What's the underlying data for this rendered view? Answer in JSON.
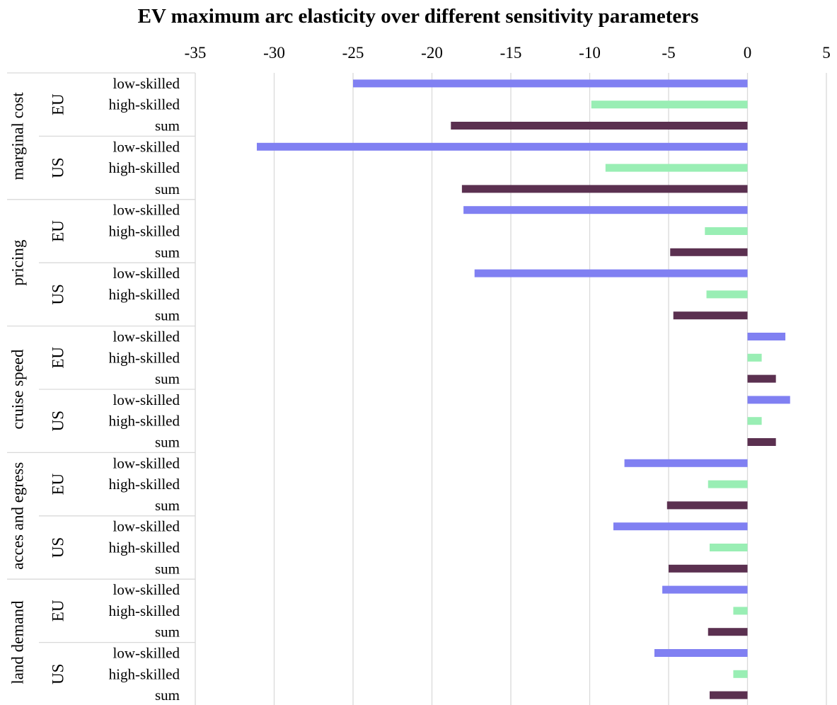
{
  "chart_data": {
    "type": "bar",
    "orientation": "horizontal",
    "title": "EV maximum arc elasticity over different sensitivity parameters",
    "xlim": [
      -35,
      5
    ],
    "x_ticks": [
      "-35",
      "-30",
      "-25",
      "-20",
      "-15",
      "-10",
      "-5",
      "0",
      "5"
    ],
    "grid": true,
    "legend": "none",
    "colors": {
      "low-skilled": "#8080f2",
      "high-skilled": "#99eeb4",
      "sum": "#5b3050"
    },
    "groups": [
      {
        "label": "marginal cost",
        "regions": [
          {
            "label": "EU",
            "rows": [
              {
                "label": "low-skilled",
                "value": -25.0
              },
              {
                "label": "high-skilled",
                "value": -9.9
              },
              {
                "label": "sum",
                "value": -18.8
              }
            ]
          },
          {
            "label": "US",
            "rows": [
              {
                "label": "low-skilled",
                "value": -31.1
              },
              {
                "label": "high-skilled",
                "value": -9.0
              },
              {
                "label": "sum",
                "value": -18.1
              }
            ]
          }
        ]
      },
      {
        "label": "pricing",
        "regions": [
          {
            "label": "EU",
            "rows": [
              {
                "label": "low-skilled",
                "value": -18.0
              },
              {
                "label": "high-skilled",
                "value": -2.7
              },
              {
                "label": "sum",
                "value": -4.9
              }
            ]
          },
          {
            "label": "US",
            "rows": [
              {
                "label": "low-skilled",
                "value": -17.3
              },
              {
                "label": "high-skilled",
                "value": -2.6
              },
              {
                "label": "sum",
                "value": -4.7
              }
            ]
          }
        ]
      },
      {
        "label": "cruise speed",
        "regions": [
          {
            "label": "EU",
            "rows": [
              {
                "label": "low-skilled",
                "value": 2.4
              },
              {
                "label": "high-skilled",
                "value": 0.9
              },
              {
                "label": "sum",
                "value": 1.8
              }
            ]
          },
          {
            "label": "US",
            "rows": [
              {
                "label": "low-skilled",
                "value": 2.7
              },
              {
                "label": "high-skilled",
                "value": 0.9
              },
              {
                "label": "sum",
                "value": 1.8
              }
            ]
          }
        ]
      },
      {
        "label": "acces and egress",
        "regions": [
          {
            "label": "EU",
            "rows": [
              {
                "label": "low-skilled",
                "value": -7.8
              },
              {
                "label": "high-skilled",
                "value": -2.5
              },
              {
                "label": "sum",
                "value": -5.1
              }
            ]
          },
          {
            "label": "US",
            "rows": [
              {
                "label": "low-skilled",
                "value": -8.5
              },
              {
                "label": "high-skilled",
                "value": -2.4
              },
              {
                "label": "sum",
                "value": -5.0
              }
            ]
          }
        ]
      },
      {
        "label": "land demand",
        "regions": [
          {
            "label": "EU",
            "rows": [
              {
                "label": "low-skilled",
                "value": -5.4
              },
              {
                "label": "high-skilled",
                "value": -0.9
              },
              {
                "label": "sum",
                "value": -2.5
              }
            ]
          },
          {
            "label": "US",
            "rows": [
              {
                "label": "low-skilled",
                "value": -5.9
              },
              {
                "label": "high-skilled",
                "value": -0.9
              },
              {
                "label": "sum",
                "value": -2.4
              }
            ]
          }
        ]
      }
    ]
  }
}
